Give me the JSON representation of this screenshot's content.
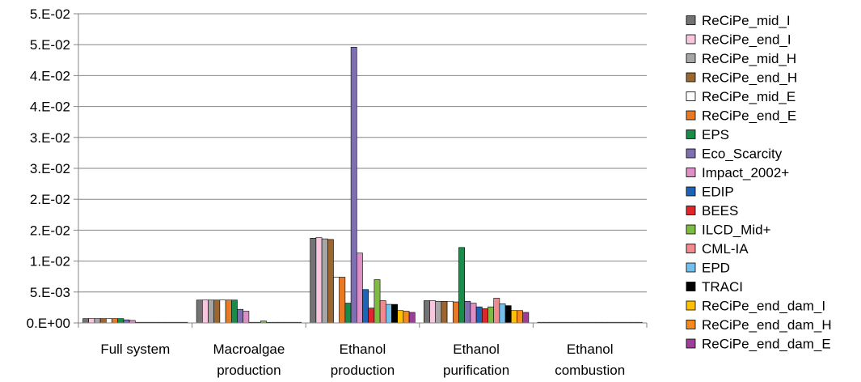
{
  "chart_data": {
    "type": "bar",
    "title": "",
    "xlabel": "",
    "ylabel": "",
    "ylim": [
      0,
      0.05
    ],
    "y_ticks": [
      0,
      0.005,
      0.01,
      0.015,
      0.02,
      0.025,
      0.03,
      0.035,
      0.04,
      0.045,
      0.05
    ],
    "y_tick_labels": [
      "0.E+00",
      "5.E-03",
      "1.E-02",
      "2.E-02",
      "2.E-02",
      "3.E-02",
      "3.E-02",
      "4.E-02",
      "4.E-02",
      "5.E-02",
      "5.E-02"
    ],
    "grid": true,
    "legend_position": "right",
    "categories": [
      [
        "Full system"
      ],
      [
        "Macroalgae",
        "production"
      ],
      [
        "Ethanol",
        "production"
      ],
      [
        "Ethanol",
        "purification"
      ],
      [
        "Ethanol",
        "combustion"
      ]
    ],
    "series": [
      {
        "name": "ReCiPe_mid_I",
        "color": "#737373",
        "values": [
          0.0007,
          0.0037,
          0.0137,
          0.0036,
          0.0001
        ]
      },
      {
        "name": "ReCiPe_end_I",
        "color": "#f9c6e0",
        "values": [
          0.0007,
          0.0037,
          0.0138,
          0.0036,
          0.0001
        ]
      },
      {
        "name": "ReCiPe_mid_H",
        "color": "#a6a6a6",
        "values": [
          0.0007,
          0.0037,
          0.0136,
          0.0035,
          0.0001
        ]
      },
      {
        "name": "ReCiPe_end_H",
        "color": "#9c6630",
        "values": [
          0.0007,
          0.0037,
          0.0135,
          0.0035,
          0.0001
        ]
      },
      {
        "name": "ReCiPe_mid_E",
        "color": "#ffffff",
        "values": [
          0.0007,
          0.0037,
          0.0074,
          0.0035,
          0.0001
        ]
      },
      {
        "name": "ReCiPe_end_E",
        "color": "#e97a23",
        "values": [
          0.0007,
          0.0037,
          0.0074,
          0.0034,
          0.0001
        ]
      },
      {
        "name": "EPS",
        "color": "#1a8c4a",
        "values": [
          0.0007,
          0.0037,
          0.0032,
          0.0122,
          0.0001
        ]
      },
      {
        "name": "Eco_Scarcity",
        "color": "#7f6fb0",
        "values": [
          0.0005,
          0.0022,
          0.0446,
          0.0035,
          0.0001
        ]
      },
      {
        "name": "Impact_2002+",
        "color": "#de8fc6",
        "values": [
          0.0004,
          0.0019,
          0.0113,
          0.0032,
          0.0001
        ]
      },
      {
        "name": "EDIP",
        "color": "#1f63b5",
        "values": [
          0.0001,
          0.0001,
          0.0054,
          0.0026,
          0.0001
        ]
      },
      {
        "name": "BEES",
        "color": "#e0262b",
        "values": [
          0.0001,
          0.0001,
          0.0024,
          0.0023,
          0.0001
        ]
      },
      {
        "name": "ILCD_Mid+",
        "color": "#7dbb42",
        "values": [
          0.0001,
          0.0003,
          0.007,
          0.0026,
          0.0001
        ]
      },
      {
        "name": "CML-IA",
        "color": "#f08a8e",
        "values": [
          0.0001,
          0.0001,
          0.0036,
          0.004,
          0.0001
        ]
      },
      {
        "name": "EPD",
        "color": "#73c0ec",
        "values": [
          0.0001,
          0.0001,
          0.003,
          0.0031,
          0.0001
        ]
      },
      {
        "name": "TRACI",
        "color": "#000000",
        "values": [
          0.0001,
          0.0001,
          0.003,
          0.0028,
          0.0001
        ]
      },
      {
        "name": "ReCiPe_end_dam_I",
        "color": "#ffc000",
        "values": [
          0.0001,
          0.0001,
          0.002,
          0.002,
          0.0001
        ]
      },
      {
        "name": "ReCiPe_end_dam_H",
        "color": "#f58a1f",
        "values": [
          0.0001,
          0.0001,
          0.0019,
          0.002,
          0.0001
        ]
      },
      {
        "name": "ReCiPe_end_dam_E",
        "color": "#9b3f97",
        "values": [
          0.0001,
          0.0001,
          0.0017,
          0.0017,
          0.0001
        ]
      }
    ],
    "style": {
      "axis_color": "#868686",
      "grid_color": "#868686",
      "bar_stroke": "#000000"
    }
  }
}
